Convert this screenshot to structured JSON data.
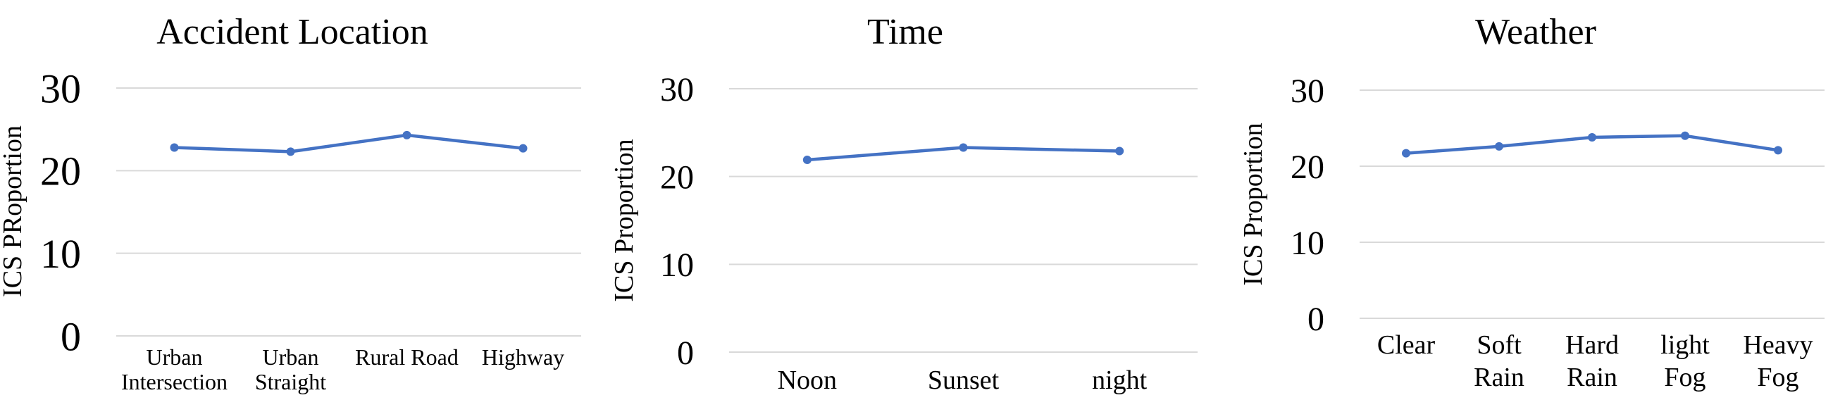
{
  "chart_data": [
    {
      "type": "line",
      "title": "Accident Location",
      "xlabel": "",
      "ylabel": "ICS PRoportion",
      "categories": [
        [
          "Urban",
          "Intersection"
        ],
        [
          "Urban",
          "Straight"
        ],
        [
          "Rural Road"
        ],
        [
          "Highway"
        ]
      ],
      "series": [
        {
          "values": [
            22.8,
            22.3,
            24.3,
            22.7
          ]
        }
      ],
      "ylim": [
        0,
        30
      ],
      "yticks": [
        0,
        10,
        20,
        30
      ],
      "grid": true,
      "legend": "none",
      "line_color": "#4472C4"
    },
    {
      "type": "line",
      "title": "Time",
      "xlabel": "",
      "ylabel": "ICS Proportion",
      "categories": [
        [
          "Noon"
        ],
        [
          "Sunset"
        ],
        [
          "night"
        ]
      ],
      "series": [
        {
          "values": [
            21.9,
            23.3,
            22.9
          ]
        }
      ],
      "ylim": [
        0,
        30
      ],
      "yticks": [
        0,
        10,
        20,
        30
      ],
      "grid": true,
      "legend": "none",
      "line_color": "#4472C4"
    },
    {
      "type": "line",
      "title": "Weather",
      "xlabel": "",
      "ylabel": "ICS Proportion",
      "categories": [
        [
          "Clear"
        ],
        [
          "Soft",
          "Rain"
        ],
        [
          "Hard",
          "Rain"
        ],
        [
          "light",
          "Fog"
        ],
        [
          "Heavy",
          "Fog"
        ]
      ],
      "series": [
        {
          "values": [
            21.7,
            22.6,
            23.8,
            24.0,
            22.1
          ]
        }
      ],
      "ylim": [
        0,
        30
      ],
      "yticks": [
        0,
        10,
        20,
        30
      ],
      "grid": true,
      "legend": "none",
      "line_color": "#4472C4"
    }
  ]
}
